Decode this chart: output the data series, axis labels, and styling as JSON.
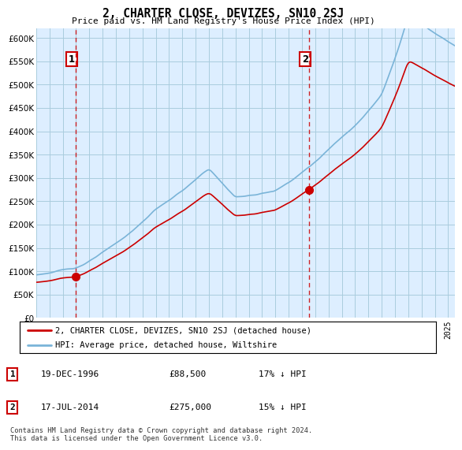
{
  "title": "2, CHARTER CLOSE, DEVIZES, SN10 2SJ",
  "subtitle": "Price paid vs. HM Land Registry's House Price Index (HPI)",
  "transactions": [
    {
      "year": 1996.97,
      "price": 88500,
      "label": "1"
    },
    {
      "year": 2014.54,
      "price": 275000,
      "label": "2"
    }
  ],
  "legend_entries": [
    "2, CHARTER CLOSE, DEVIZES, SN10 2SJ (detached house)",
    "HPI: Average price, detached house, Wiltshire"
  ],
  "table_rows": [
    [
      "1",
      "19-DEC-1996",
      "£88,500",
      "17% ↓ HPI"
    ],
    [
      "2",
      "17-JUL-2014",
      "£275,000",
      "15% ↓ HPI"
    ]
  ],
  "footer": "Contains HM Land Registry data © Crown copyright and database right 2024.\nThis data is licensed under the Open Government Licence v3.0.",
  "ylim": [
    0,
    620000
  ],
  "yticks": [
    0,
    50000,
    100000,
    150000,
    200000,
    250000,
    300000,
    350000,
    400000,
    450000,
    500000,
    550000,
    600000
  ],
  "hpi_color": "#7ab4d8",
  "price_color": "#cc0000",
  "vline_color": "#cc0000",
  "chart_bg_color": "#ddeeff",
  "grid_color": "#aaccdd",
  "transaction_marker_color": "#cc0000",
  "xlim_start": 1994.0,
  "xlim_end": 2025.5
}
